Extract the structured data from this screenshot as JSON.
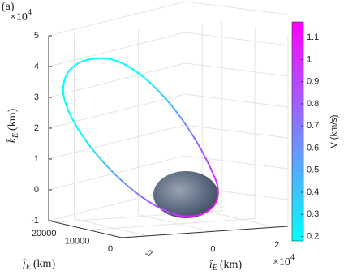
{
  "chart_data": {
    "type": "orbit3d",
    "panel_label": "(a)",
    "zlabel": {
      "symbol": "k̂",
      "subscript": "E",
      "unit": "(km)"
    },
    "ylabel": {
      "symbol": "ĵ",
      "subscript": "E",
      "unit": "(km)"
    },
    "xlabel": {
      "symbol": "î",
      "subscript": "E",
      "unit": "(km)"
    },
    "z_multiplier": {
      "base": "×10",
      "power": "4"
    },
    "x_multiplier": {
      "base": "×10",
      "power": "4"
    },
    "zlim": [
      -1,
      5
    ],
    "zticks": [
      -1,
      0,
      1,
      2,
      3,
      4,
      5
    ],
    "ylim": [
      0,
      22000
    ],
    "yticks": [
      0,
      10000,
      20000
    ],
    "xlim": [
      -2.8,
      2.4
    ],
    "xticks": [
      -2,
      0,
      2
    ],
    "colorbar": {
      "label": "V (km/s)",
      "lim": [
        0.18,
        1.17
      ],
      "ticks": [
        0.2,
        0.3,
        0.4,
        0.5,
        0.6,
        0.7,
        0.8,
        0.9,
        1,
        1.1
      ],
      "colors": [
        "#00ffff",
        "#ff00ff"
      ]
    },
    "grid": true
  }
}
